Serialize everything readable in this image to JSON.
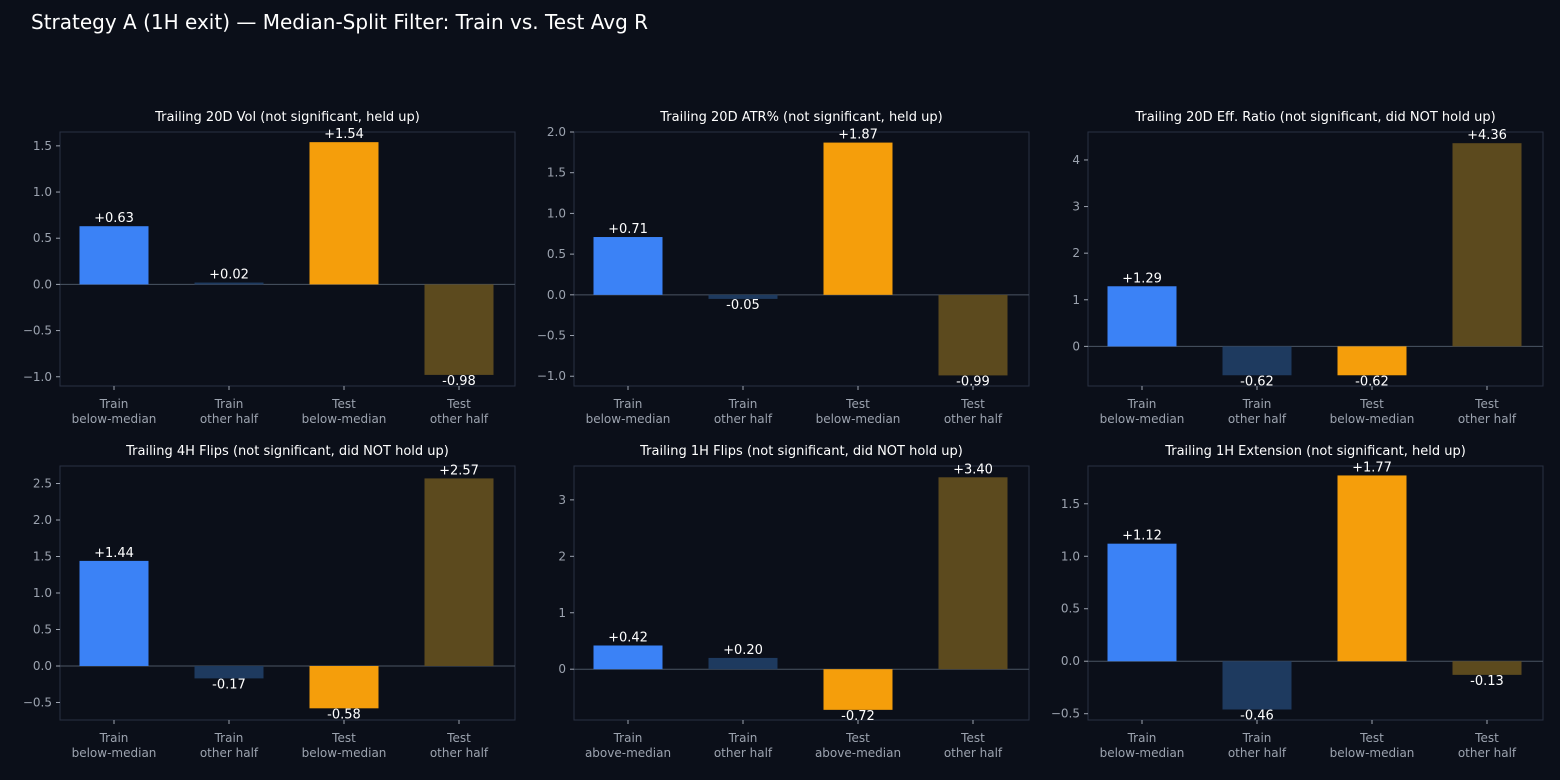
{
  "figure": {
    "title": "Strategy A (1H exit) — Median-Split Filter: Train vs. Test Avg R",
    "colors": {
      "background": "#0b0f19",
      "axis": "#2a3142",
      "tick_text": "#9ca3af",
      "title_text": "#ffffff",
      "train_selected": "#3b82f6",
      "train_other": "#1e3a5f",
      "test_selected": "#f59e0b",
      "test_other": "#5c4a1e"
    }
  },
  "chart_data": [
    {
      "type": "bar",
      "title": "Trailing 20D Vol (not significant, held up)",
      "categories": [
        "Train\nbelow-median",
        "Train\nother half",
        "Test\nbelow-median",
        "Test\nother half"
      ],
      "values": [
        0.63,
        0.02,
        1.54,
        -0.98
      ],
      "data_labels": [
        "+0.63",
        "+0.02",
        "+1.54",
        "-0.98"
      ],
      "ylim": [
        -1.1,
        1.65
      ],
      "yticks": [
        -1.0,
        -0.5,
        0.0,
        0.5,
        1.0,
        1.5
      ],
      "ytick_labels": [
        "−1.0",
        "−0.5",
        "0.0",
        "0.5",
        "1.0",
        "1.5"
      ]
    },
    {
      "type": "bar",
      "title": "Trailing 20D ATR% (not significant, held up)",
      "categories": [
        "Train\nbelow-median",
        "Train\nother half",
        "Test\nbelow-median",
        "Test\nother half"
      ],
      "values": [
        0.71,
        -0.05,
        1.87,
        -0.99
      ],
      "data_labels": [
        "+0.71",
        "-0.05",
        "+1.87",
        "-0.99"
      ],
      "ylim": [
        -1.12,
        2.0
      ],
      "yticks": [
        -1.0,
        -0.5,
        0.0,
        0.5,
        1.0,
        1.5,
        2.0
      ],
      "ytick_labels": [
        "−1.0",
        "−0.5",
        "0.0",
        "0.5",
        "1.0",
        "1.5",
        "2.0"
      ]
    },
    {
      "type": "bar",
      "title": "Trailing 20D Eff. Ratio (not significant, did NOT hold up)",
      "categories": [
        "Train\nbelow-median",
        "Train\nother half",
        "Test\nbelow-median",
        "Test\nother half"
      ],
      "values": [
        1.29,
        -0.62,
        -0.62,
        4.36
      ],
      "data_labels": [
        "+1.29",
        "-0.62",
        "-0.62",
        "+4.36"
      ],
      "ylim": [
        -0.85,
        4.6
      ],
      "yticks": [
        0,
        1,
        2,
        3,
        4
      ],
      "ytick_labels": [
        "0",
        "1",
        "2",
        "3",
        "4"
      ]
    },
    {
      "type": "bar",
      "title": "Trailing 4H Flips (not significant, did NOT hold up)",
      "categories": [
        "Train\nbelow-median",
        "Train\nother half",
        "Test\nbelow-median",
        "Test\nother half"
      ],
      "values": [
        1.44,
        -0.17,
        -0.58,
        2.57
      ],
      "data_labels": [
        "+1.44",
        "-0.17",
        "-0.58",
        "+2.57"
      ],
      "ylim": [
        -0.74,
        2.74
      ],
      "yticks": [
        -0.5,
        0.0,
        0.5,
        1.0,
        1.5,
        2.0,
        2.5
      ],
      "ytick_labels": [
        "−0.5",
        "0.0",
        "0.5",
        "1.0",
        "1.5",
        "2.0",
        "2.5"
      ]
    },
    {
      "type": "bar",
      "title": "Trailing 1H Flips (not significant, did NOT hold up)",
      "categories": [
        "Train\nabove-median",
        "Train\nother half",
        "Test\nabove-median",
        "Test\nother half"
      ],
      "values": [
        0.42,
        0.2,
        -0.72,
        3.4
      ],
      "data_labels": [
        "+0.42",
        "+0.20",
        "-0.72",
        "+3.40"
      ],
      "ylim": [
        -0.9,
        3.6
      ],
      "yticks": [
        0,
        1,
        2,
        3
      ],
      "ytick_labels": [
        "0",
        "1",
        "2",
        "3"
      ]
    },
    {
      "type": "bar",
      "title": "Trailing 1H Extension (not significant, held up)",
      "categories": [
        "Train\nbelow-median",
        "Train\nother half",
        "Test\nbelow-median",
        "Test\nother half"
      ],
      "values": [
        1.12,
        -0.46,
        1.77,
        -0.13
      ],
      "data_labels": [
        "+1.12",
        "-0.46",
        "+1.77",
        "-0.13"
      ],
      "ylim": [
        -0.56,
        1.86
      ],
      "yticks": [
        -0.5,
        0.0,
        0.5,
        1.0,
        1.5
      ],
      "ytick_labels": [
        "−0.5",
        "0.0",
        "0.5",
        "1.0",
        "1.5"
      ]
    }
  ]
}
